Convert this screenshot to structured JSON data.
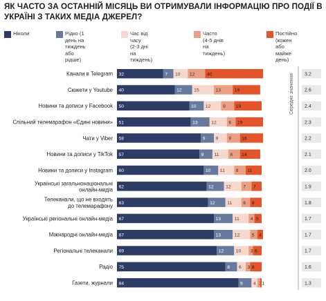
{
  "title": "Як часто за останній місяць ви отримували інформацію про події в Україні з таких медіа джерел?",
  "chart_data": {
    "type": "bar",
    "stacked": true,
    "orientation": "horizontal",
    "xlim": [
      0,
      100
    ],
    "categories": [
      "Канали в Telegram",
      "Сюжети у Youtube",
      "Новини та дописи у Facebook",
      "Спільний телемарафон «Єдині новини»",
      "Чати у Viber",
      "Новини та дописи у TikTok",
      "Новини та дописи у Instagram",
      "Українські загальнонаціональні\nонлайн-медіа",
      "Телеканали, що не входять\nдо телемарафону",
      "Українські регіональні онлайн-медіа",
      "Міжнародні онлайн-медіа",
      "Регіональні телеканали",
      "Радіо",
      "Газети, журнали"
    ],
    "series": [
      {
        "name": "Ніколи",
        "color": "#2e3b66",
        "values": [
          32,
          40,
          50,
          51,
          58,
          57,
          60,
          62,
          63,
          67,
          67,
          69,
          75,
          84
        ]
      },
      {
        "name": "Рідко (1 день на\nтиждень або рідше)",
        "color": "#677a9e",
        "values": [
          7,
          12,
          10,
          13,
          9,
          9,
          10,
          12,
          12,
          13,
          13,
          12,
          8,
          9
        ]
      },
      {
        "name": "Час від часу\n(2-3 дні на тиждень)",
        "color": "#f8d8cc",
        "values": [
          10,
          15,
          12,
          12,
          9,
          11,
          11,
          12,
          11,
          11,
          12,
          10,
          6,
          4
        ]
      },
      {
        "name": "Часто\n(4-5 днів на тиждень)",
        "color": "#ec9e82",
        "values": [
          12,
          13,
          9,
          6,
          9,
          8,
          8,
          7,
          6,
          4,
          5,
          3,
          3,
          2
        ]
      },
      {
        "name": "Постійно (кожен\nабо майже день)",
        "color": "#e4542a",
        "values": [
          40,
          19,
          19,
          19,
          16,
          14,
          11,
          7,
          8,
          5,
          4,
          6,
          8,
          1
        ]
      }
    ],
    "mean_label": "Середнє значення",
    "means": [
      "3.2",
      "2.6",
      "2.4",
      "2.3",
      "2.2",
      "2.1",
      "2.0",
      "1.9",
      "1.8",
      "1.7",
      "1.7",
      "1.7",
      "1.6",
      "1.3"
    ]
  }
}
